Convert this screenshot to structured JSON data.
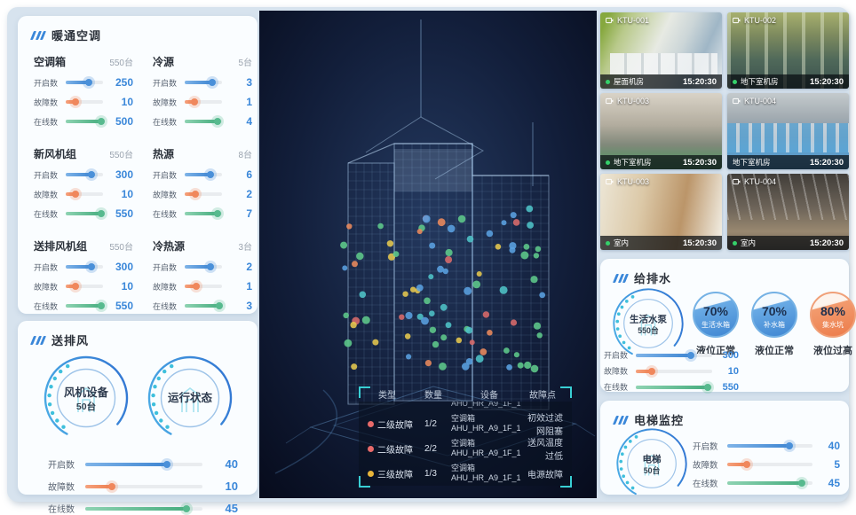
{
  "colors": {
    "accent": "#3a87d9",
    "open_blue": "#4a90d9",
    "fault_orange": "#f0875c",
    "online_green": "#57ba8e",
    "alarm_red": "#e86a6a",
    "alarm_yellow": "#e9b53a",
    "camera_live_green": "#35d06a",
    "bracket_cyan": "#39cfd4"
  },
  "hvac": {
    "title": "暖通空调",
    "groups": [
      {
        "name": "空调箱",
        "count": "550台",
        "metrics": [
          {
            "label": "开启数",
            "value": "250",
            "pct": 62,
            "color": "blue"
          },
          {
            "label": "故障数",
            "value": "10",
            "pct": 25,
            "color": "orange"
          },
          {
            "label": "在线数",
            "value": "500",
            "pct": 96,
            "color": "green"
          }
        ]
      },
      {
        "name": "冷源",
        "count": "5台",
        "metrics": [
          {
            "label": "开启数",
            "value": "3",
            "pct": 74,
            "color": "blue"
          },
          {
            "label": "故障数",
            "value": "1",
            "pct": 27,
            "color": "orange"
          },
          {
            "label": "在线数",
            "value": "4",
            "pct": 89,
            "color": "green"
          }
        ]
      },
      {
        "name": "新风机组",
        "count": "550台",
        "metrics": [
          {
            "label": "开启数",
            "value": "300",
            "pct": 68,
            "color": "blue"
          },
          {
            "label": "故障数",
            "value": "10",
            "pct": 25,
            "color": "orange"
          },
          {
            "label": "在线数",
            "value": "550",
            "pct": 96,
            "color": "green"
          }
        ]
      },
      {
        "name": "热源",
        "count": "8台",
        "metrics": [
          {
            "label": "开启数",
            "value": "6",
            "pct": 68,
            "color": "blue"
          },
          {
            "label": "故障数",
            "value": "2",
            "pct": 28,
            "color": "orange"
          },
          {
            "label": "在线数",
            "value": "7",
            "pct": 89,
            "color": "green"
          }
        ]
      },
      {
        "name": "送排风机组",
        "count": "550台",
        "metrics": [
          {
            "label": "开启数",
            "value": "300",
            "pct": 68,
            "color": "blue"
          },
          {
            "label": "故障数",
            "value": "10",
            "pct": 25,
            "color": "orange"
          },
          {
            "label": "在线数",
            "value": "550",
            "pct": 96,
            "color": "green"
          }
        ]
      },
      {
        "name": "冷热源",
        "count": "3台",
        "metrics": [
          {
            "label": "开启数",
            "value": "2",
            "pct": 68,
            "color": "blue"
          },
          {
            "label": "故障数",
            "value": "1",
            "pct": 30,
            "color": "orange"
          },
          {
            "label": "在线数",
            "value": "3",
            "pct": 92,
            "color": "green"
          }
        ]
      }
    ]
  },
  "fan": {
    "title": "送排风",
    "gauges": [
      {
        "line1": "风机设备",
        "line2": "50台"
      },
      {
        "line1": "运行状态",
        "line2": ""
      }
    ],
    "metrics": [
      {
        "label": "开启数",
        "value": "40",
        "pct": 70,
        "color": "blue"
      },
      {
        "label": "故障数",
        "value": "10",
        "pct": 23,
        "color": "orange"
      },
      {
        "label": "在线数",
        "value": "45",
        "pct": 86,
        "color": "green"
      }
    ]
  },
  "fault_table": {
    "headers": [
      "类型",
      "数量",
      "设备",
      "故障点"
    ],
    "clipped_text": "AHU_HR_A9_1F_1",
    "rows": [
      {
        "severity": "red",
        "level": "二级故障",
        "qty": "1/2",
        "device_line1": "空调箱",
        "device_line2": "AHU_HR_A9_1F_1",
        "fault": "初效过滤网阻塞"
      },
      {
        "severity": "red",
        "level": "二级故障",
        "qty": "2/2",
        "device_line1": "空调箱",
        "device_line2": "AHU_HR_A9_1F_1",
        "fault": "送风温度过低"
      },
      {
        "severity": "yellow",
        "level": "三级故障",
        "qty": "1/3",
        "device_line1": "空调箱",
        "device_line2": "AHU_HR_A9_1F_1",
        "fault": "电源故障"
      }
    ]
  },
  "cameras": [
    {
      "id": "KTU-001",
      "location": "屋面机房",
      "time": "15:20:30",
      "live": true
    },
    {
      "id": "KTU-002",
      "location": "地下室机房",
      "time": "15:20:30",
      "live": true
    },
    {
      "id": "KTU-003",
      "location": "地下室机房",
      "time": "15:20:30",
      "live": true
    },
    {
      "id": "KTU-004",
      "location": "地下室机房",
      "time": "15:20:30",
      "live": false
    },
    {
      "id": "KTU-003",
      "location": "室内",
      "time": "15:20:30",
      "live": true
    },
    {
      "id": "KTU-004",
      "location": "室内",
      "time": "15:20:30",
      "live": true
    }
  ],
  "water": {
    "title": "给排水",
    "gauge": {
      "line1": "生活水泵",
      "line2": "550台"
    },
    "tanks": [
      {
        "pct": "70%",
        "name": "生活水箱",
        "status": "液位正常",
        "theme": "blue"
      },
      {
        "pct": "70%",
        "name": "补水箱",
        "status": "液位正常",
        "theme": "blue"
      },
      {
        "pct": "80%",
        "name": "集水坑",
        "status": "液位过高",
        "theme": "orange"
      }
    ],
    "metrics": [
      {
        "label": "开启数",
        "value": "300",
        "pct": 72,
        "color": "blue"
      },
      {
        "label": "故障数",
        "value": "10",
        "pct": 21,
        "color": "orange"
      },
      {
        "label": "在线数",
        "value": "550",
        "pct": 94,
        "color": "green"
      }
    ]
  },
  "elevator": {
    "title": "电梯监控",
    "gauge": {
      "line1": "电梯",
      "line2": "50台"
    },
    "metrics": [
      {
        "label": "开启数",
        "value": "40",
        "pct": 73,
        "color": "blue"
      },
      {
        "label": "故障数",
        "value": "5",
        "pct": 23,
        "color": "orange"
      },
      {
        "label": "在线数",
        "value": "45",
        "pct": 87,
        "color": "green"
      }
    ]
  }
}
